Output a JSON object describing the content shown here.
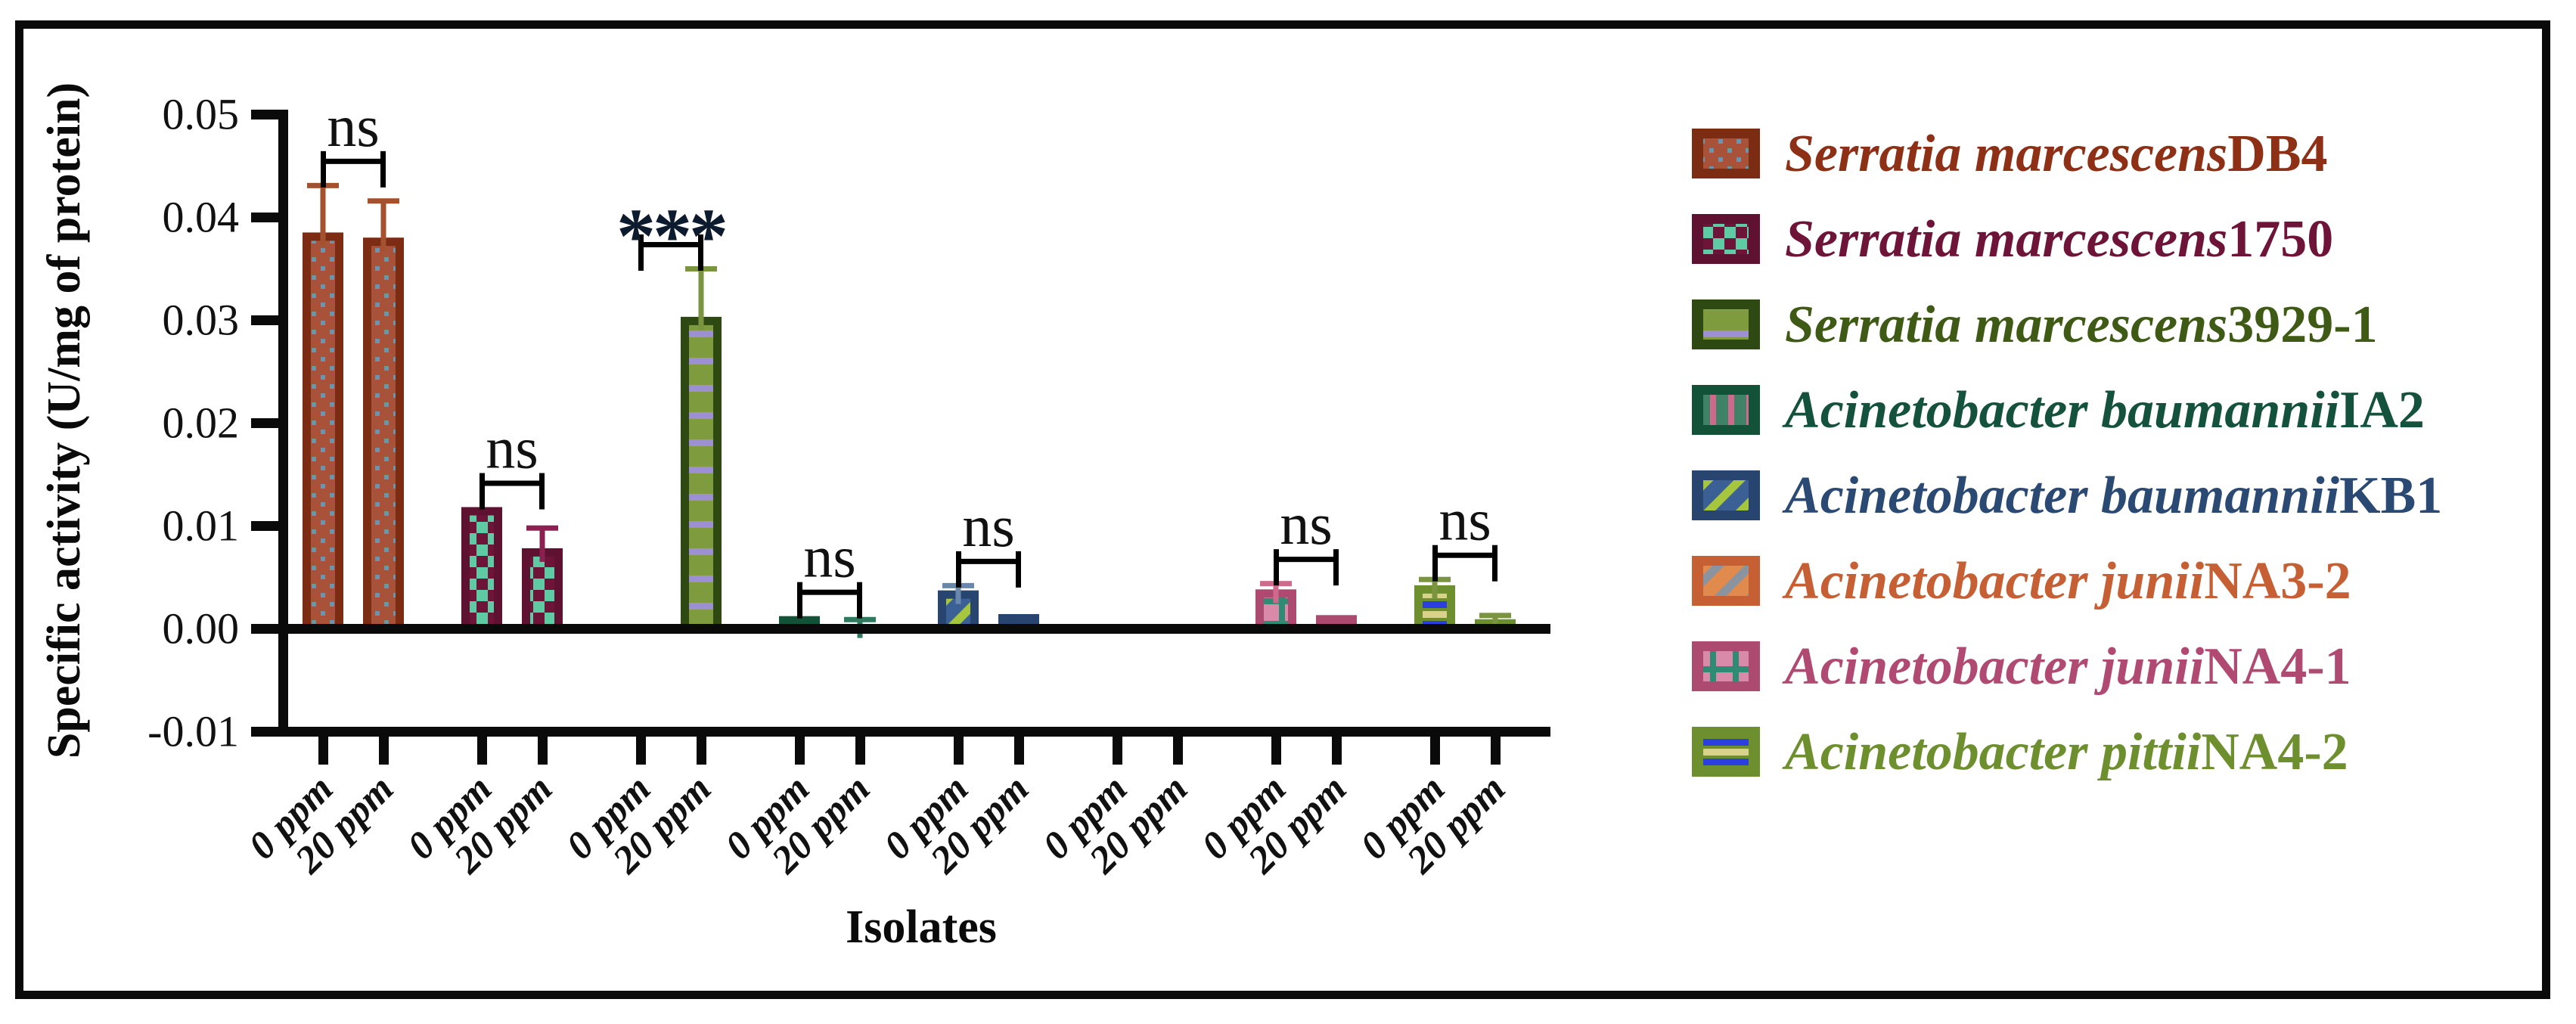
{
  "figure": {
    "background": "#ffffff",
    "border_color": "#0a0a0a"
  },
  "chart_data": {
    "type": "bar",
    "title": "",
    "xlabel": "Isolates",
    "ylabel": "Specific activity (U/mg of protein)",
    "ylim": [
      -0.01,
      0.05
    ],
    "grid": "off",
    "legend_position": "right",
    "yticks": [
      0.05,
      0.04,
      0.03,
      0.02,
      0.01,
      0.0,
      -0.01
    ],
    "ytick_labels": [
      "0.05",
      "0.04",
      "0.03",
      "0.02",
      "0.01",
      "0.00",
      "-0.01"
    ],
    "group_labels": [
      "0 ppm",
      "20 ppm"
    ],
    "series": [
      {
        "species": "Serratia marcescens",
        "strain": "DB4",
        "text_color": "#8d3016",
        "edge": "#7c2c12",
        "fill": "#a9523a",
        "accent": "#6e95a5",
        "error_color": "#a4512d",
        "pattern": "dots",
        "values": [
          0.0385,
          0.038
        ],
        "errors": [
          0.0046,
          0.0036
        ],
        "significance": "ns"
      },
      {
        "species": "Serratia marcescens",
        "strain": "1750",
        "text_color": "#6e1438",
        "edge": "#5e1130",
        "fill": "#6e1438",
        "accent": "#5fcba4",
        "error_color": "#8c2050",
        "pattern": "checker",
        "values": [
          0.0118,
          0.0078
        ],
        "errors": [
          null,
          0.002
        ],
        "significance": "ns"
      },
      {
        "species": "Serratia marcescens",
        "strain": "3929-1",
        "text_color": "#3e5a14",
        "edge": "#2e4a12",
        "fill": "#7e9c3e",
        "accent": "#9c8fd4",
        "error_color": "#7a9440",
        "pattern": "hstripes",
        "values": [
          0.0,
          0.0303
        ],
        "errors": [
          null,
          0.0047
        ],
        "significance": "***"
      },
      {
        "species": "Acinetobacter baumannii",
        "strain": "IA2",
        "text_color": "#14523e",
        "edge": "#115239",
        "fill": "#3f8268",
        "accent": "#d06a8c",
        "error_color": "#2e7a5e",
        "pattern": "vstripes",
        "values": [
          0.0012,
          0.0004
        ],
        "errors": [
          null,
          0.0005
        ],
        "significance": "ns"
      },
      {
        "species": "Acinetobacter baumannii",
        "strain": "KB1",
        "text_color": "#2b4a73",
        "edge": "#27456e",
        "fill": "#3a6096",
        "accent": "#a6c63e",
        "error_color": "#6b86ad",
        "pattern": "diagonal",
        "values": [
          0.0037,
          0.0014
        ],
        "errors": [
          0.0005,
          null
        ],
        "significance": "ns"
      },
      {
        "species": "Acinetobacter junii",
        "strain": "NA3-2",
        "text_color": "#c65f33",
        "edge": "#c65f33",
        "fill": "#e08a4e",
        "accent": "#8a93a0",
        "error_color": "#c65f33",
        "pattern": "diagonal",
        "values": [
          0.0,
          0.0
        ],
        "errors": [
          null,
          null
        ],
        "significance": null
      },
      {
        "species": "Acinetobacter junii",
        "strain": "NA4-1",
        "text_color": "#b04a72",
        "edge": "#ad4a70",
        "fill": "#d98aa8",
        "accent": "#2e8b74",
        "error_color": "#d06a8c",
        "pattern": "grid",
        "values": [
          0.0038,
          0.0013
        ],
        "errors": [
          0.0006,
          null
        ],
        "significance": "ns"
      },
      {
        "species": "Acinetobacter pittii",
        "strain": "NA4-2",
        "text_color": "#6e8f2e",
        "edge": "#6e8f2e",
        "fill": "#d8d28a",
        "accent": "#2b3fe0",
        "error_color": "#7a9440",
        "pattern": "banded",
        "values": [
          0.0042,
          0.0009
        ],
        "errors": [
          0.0006,
          0.0004
        ],
        "significance": "ns"
      }
    ]
  }
}
